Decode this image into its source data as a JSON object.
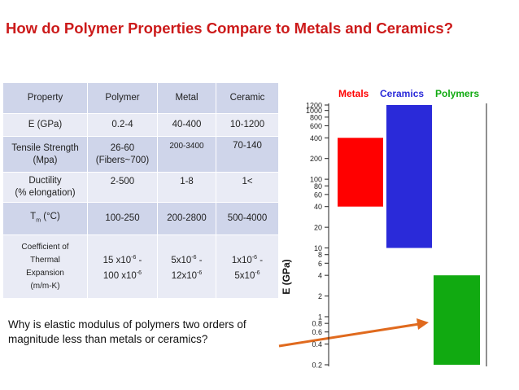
{
  "title": "How do Polymer Properties Compare to Metals and Ceramics?",
  "table": {
    "headers": [
      "Property",
      "Polymer",
      "Metal",
      "Ceramic"
    ],
    "rows": [
      {
        "property": "E (GPa)",
        "polymer": "0.2-4",
        "metal": "40-400",
        "ceramic": "10-1200"
      },
      {
        "property": "Tensile Strength (Mpa)",
        "polymer": "26-60 (Fibers~700)",
        "metal": "200-3400",
        "ceramic": "70-140"
      },
      {
        "property": "Ductility (% elongation)",
        "polymer": "2-500",
        "metal": "1-8",
        "ceramic": "1<"
      },
      {
        "property": "Tm (°C)",
        "polymer": "100-250",
        "metal": "200-2800",
        "ceramic": "500-4000"
      },
      {
        "property": "Coefficient of Thermal Expansion (m/m-K)",
        "polymer": "15 x10-6 - 100 x10-6",
        "metal": "5x10-6 - 12x10-6",
        "ceramic": "1x10-6 - 5x10-6"
      }
    ],
    "row_text": {
      "e_label": "E (GPa)",
      "ts_label_1": "Tensile Strength",
      "ts_label_2": "(Mpa)",
      "ts_polymer_1": "26-60",
      "ts_polymer_2": "(Fibers~700)",
      "duct_label_1": "Ductility",
      "duct_label_2": "(% elongation)",
      "tm_label_main": "T",
      "tm_label_sub": "m",
      "tm_label_unit": " (°C)",
      "cte_label_1": "Coefficient of",
      "cte_label_2": "Thermal",
      "cte_label_3": "Expansion",
      "cte_label_4": "(m/m-K)",
      "cte_poly_a": "15 x10",
      "cte_poly_b": "100 x10",
      "cte_metal_a": "5x10",
      "cte_metal_b": "12x10",
      "cte_cer_a": "1x10",
      "cte_cer_b": "5x10",
      "exp": "-6",
      "dash": " -"
    }
  },
  "caption": "Why is elastic modulus of polymers two orders of magnitude less than metals or ceramics?",
  "colors": {
    "title": "#cc1a1a",
    "metals": "#ff0000",
    "ceramics": "#2a2ad9",
    "polymers": "#11aa11",
    "arrow": "#e06a1e"
  },
  "chart_data": {
    "type": "bar",
    "ylabel": "E (GPa)",
    "yscale": "log",
    "ylim": [
      0.2,
      1200
    ],
    "tick_labels": [
      "1200",
      "1000",
      "800",
      "600",
      "400",
      "200",
      "100",
      "80",
      "60",
      "40",
      "20",
      "10",
      "8",
      "6",
      "4",
      "2",
      "1",
      "0.8",
      "0.6",
      "0.4",
      "0.2"
    ],
    "tick_values": [
      1200,
      1000,
      800,
      600,
      400,
      200,
      100,
      80,
      60,
      40,
      20,
      10,
      8,
      6,
      4,
      2,
      1,
      0.8,
      0.6,
      0.4,
      0.2
    ],
    "series": [
      {
        "name": "Metals",
        "range": [
          40,
          400
        ],
        "color": "#ff0000"
      },
      {
        "name": "Ceramics",
        "range": [
          10,
          1200
        ],
        "color": "#2a2ad9"
      },
      {
        "name": "Polymers",
        "range": [
          0.2,
          4
        ],
        "color": "#11aa11"
      }
    ]
  }
}
